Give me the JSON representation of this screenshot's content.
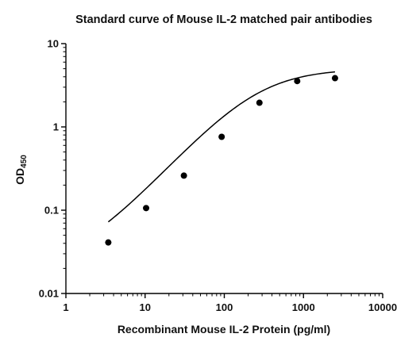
{
  "chart_data": {
    "type": "scatter",
    "title": "Standard curve of Mouse IL-2 matched pair antibodies",
    "xlabel": "Recombinant Mouse IL-2 Protein (pg/ml)",
    "ylabel_main": "OD",
    "ylabel_sub": "450",
    "xscale": "log",
    "yscale": "log",
    "xlim": [
      1,
      10000
    ],
    "ylim": [
      0.01,
      10
    ],
    "x_ticks": [
      1,
      10,
      100,
      1000,
      10000
    ],
    "x_tick_labels": [
      "1",
      "10",
      "100",
      "1000",
      "10000"
    ],
    "y_ticks": [
      0.01,
      0.1,
      1,
      10
    ],
    "y_tick_labels": [
      "0.01",
      "0.1",
      "1",
      "10"
    ],
    "grid": false,
    "series": [
      {
        "points": [
          {
            "x": 3.43,
            "y": 0.041
          },
          {
            "x": 10.3,
            "y": 0.106
          },
          {
            "x": 30.9,
            "y": 0.26
          },
          {
            "x": 92.6,
            "y": 0.76
          },
          {
            "x": 278,
            "y": 1.95
          },
          {
            "x": 833,
            "y": 3.55
          },
          {
            "x": 2500,
            "y": 3.85
          }
        ],
        "color": "#000000"
      }
    ],
    "fit_curve": {
      "model": "4PL",
      "bottom": 0.02,
      "top": 5.0,
      "ec50": 260,
      "hill": 1.05,
      "x_range": [
        3.43,
        2500
      ],
      "color": "#000000"
    }
  }
}
